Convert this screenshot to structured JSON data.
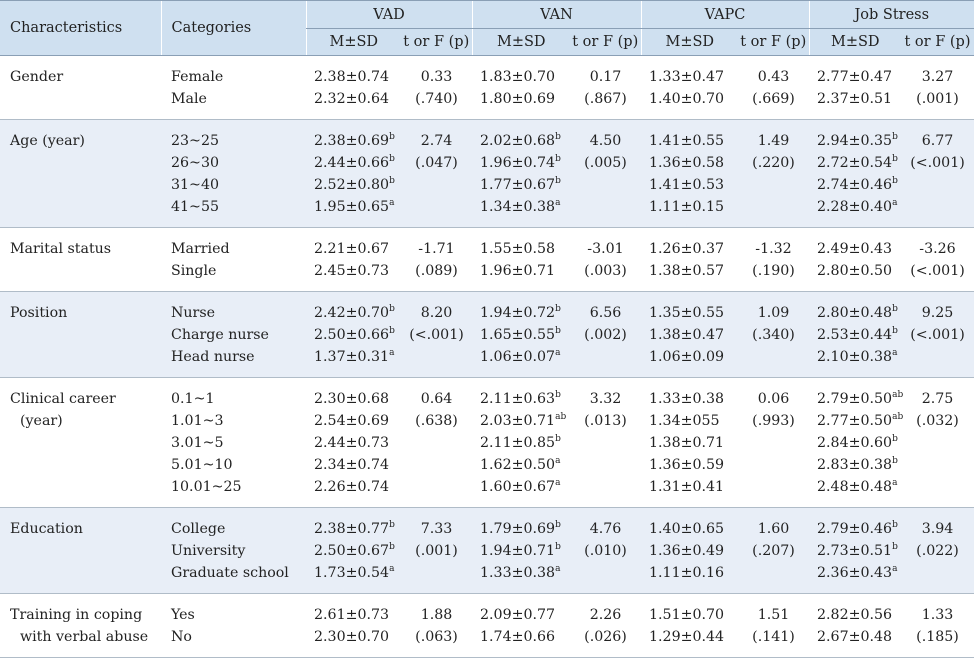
{
  "header": {
    "characteristics": "Characteristics",
    "categories": "Categories",
    "groups": [
      "VAD",
      "VAN",
      "VAPC",
      "Job Stress"
    ],
    "ms_label": "M±SD",
    "tf_label": "t or F (p)"
  },
  "rows": [
    {
      "characteristic": [
        "Gender"
      ],
      "categories": [
        "Female",
        "Male"
      ],
      "vad": {
        "ms": [
          [
            "2.38±0.74",
            ""
          ],
          [
            "2.32±0.64",
            ""
          ]
        ],
        "tf": [
          "0.33",
          "(.740)"
        ]
      },
      "van": {
        "ms": [
          [
            "1.83±0.70",
            ""
          ],
          [
            "1.80±0.69",
            ""
          ]
        ],
        "tf": [
          "0.17",
          "(.867)"
        ]
      },
      "vapc": {
        "ms": [
          [
            "1.33±0.47",
            ""
          ],
          [
            "1.40±0.70",
            ""
          ]
        ],
        "tf": [
          "0.43",
          "(.669)"
        ]
      },
      "js": {
        "ms": [
          [
            "2.77±0.47",
            ""
          ],
          [
            "2.37±0.51",
            ""
          ]
        ],
        "tf": [
          "3.27",
          "(.001)"
        ]
      }
    },
    {
      "characteristic": [
        "Age (year)"
      ],
      "categories": [
        "23~25",
        "26~30",
        "31~40",
        "41~55"
      ],
      "vad": {
        "ms": [
          [
            "2.38±0.69",
            "b"
          ],
          [
            "2.44±0.66",
            "b"
          ],
          [
            "2.52±0.80",
            "b"
          ],
          [
            "1.95±0.65",
            "a"
          ]
        ],
        "tf": [
          "2.74",
          "(.047)"
        ]
      },
      "van": {
        "ms": [
          [
            "2.02±0.68",
            "b"
          ],
          [
            "1.96±0.74",
            "b"
          ],
          [
            "1.77±0.67",
            "b"
          ],
          [
            "1.34±0.38",
            "a"
          ]
        ],
        "tf": [
          "4.50",
          "(.005)"
        ]
      },
      "vapc": {
        "ms": [
          [
            "1.41±0.55",
            ""
          ],
          [
            "1.36±0.58",
            ""
          ],
          [
            "1.41±0.53",
            ""
          ],
          [
            "1.11±0.15",
            ""
          ]
        ],
        "tf": [
          "1.49",
          "(.220)"
        ]
      },
      "js": {
        "ms": [
          [
            "2.94±0.35",
            "b"
          ],
          [
            "2.72±0.54",
            "b"
          ],
          [
            "2.74±0.46",
            "b"
          ],
          [
            "2.28±0.40",
            "a"
          ]
        ],
        "tf": [
          "6.77",
          "(<.001)"
        ]
      }
    },
    {
      "characteristic": [
        "Marital status"
      ],
      "categories": [
        "Married",
        "Single"
      ],
      "vad": {
        "ms": [
          [
            "2.21±0.67",
            ""
          ],
          [
            "2.45±0.73",
            ""
          ]
        ],
        "tf": [
          "-1.71",
          "(.089)"
        ]
      },
      "van": {
        "ms": [
          [
            "1.55±0.58",
            ""
          ],
          [
            "1.96±0.71",
            ""
          ]
        ],
        "tf": [
          "-3.01",
          "(.003)"
        ]
      },
      "vapc": {
        "ms": [
          [
            "1.26±0.37",
            ""
          ],
          [
            "1.38±0.57",
            ""
          ]
        ],
        "tf": [
          "-1.32",
          "(.190)"
        ]
      },
      "js": {
        "ms": [
          [
            "2.49±0.43",
            ""
          ],
          [
            "2.80±0.50",
            ""
          ]
        ],
        "tf": [
          "-3.26",
          "(<.001)"
        ]
      }
    },
    {
      "characteristic": [
        "Position"
      ],
      "categories": [
        "Nurse",
        "Charge nurse",
        "Head nurse"
      ],
      "vad": {
        "ms": [
          [
            "2.42±0.70",
            "b"
          ],
          [
            "2.50±0.66",
            "b"
          ],
          [
            "1.37±0.31",
            "a"
          ]
        ],
        "tf": [
          "8.20",
          "(<.001)"
        ]
      },
      "van": {
        "ms": [
          [
            "1.94±0.72",
            "b"
          ],
          [
            "1.65±0.55",
            "b"
          ],
          [
            "1.06±0.07",
            "a"
          ]
        ],
        "tf": [
          "6.56",
          "(.002)"
        ]
      },
      "vapc": {
        "ms": [
          [
            "1.35±0.55",
            ""
          ],
          [
            "1.38±0.47",
            ""
          ],
          [
            "1.06±0.09",
            ""
          ]
        ],
        "tf": [
          "1.09",
          "(.340)"
        ]
      },
      "js": {
        "ms": [
          [
            "2.80±0.48",
            "b"
          ],
          [
            "2.53±0.44",
            "b"
          ],
          [
            "2.10±0.38",
            "a"
          ]
        ],
        "tf": [
          "9.25",
          "(<.001)"
        ]
      }
    },
    {
      "characteristic": [
        "Clinical career",
        "(year)"
      ],
      "categories": [
        "0.1~1",
        "1.01~3",
        "3.01~5",
        "5.01~10",
        "10.01~25"
      ],
      "vad": {
        "ms": [
          [
            "2.30±0.68",
            ""
          ],
          [
            "2.54±0.69",
            ""
          ],
          [
            "2.44±0.73",
            ""
          ],
          [
            "2.34±0.74",
            ""
          ],
          [
            "2.26±0.74",
            ""
          ]
        ],
        "tf": [
          "0.64",
          "(.638)"
        ]
      },
      "van": {
        "ms": [
          [
            "2.11±0.63",
            "b"
          ],
          [
            "2.03±0.71",
            "ab"
          ],
          [
            "2.11±0.85",
            "b"
          ],
          [
            "1.62±0.50",
            "a"
          ],
          [
            "1.60±0.67",
            "a"
          ]
        ],
        "tf": [
          "3.32",
          "(.013)"
        ]
      },
      "vapc": {
        "ms": [
          [
            "1.33±0.38",
            ""
          ],
          [
            "1.34±055",
            ""
          ],
          [
            "1.38±0.71",
            ""
          ],
          [
            "1.36±0.59",
            ""
          ],
          [
            "1.31±0.41",
            ""
          ]
        ],
        "tf": [
          "0.06",
          "(.993)"
        ]
      },
      "js": {
        "ms": [
          [
            "2.79±0.50",
            "ab"
          ],
          [
            "2.77±0.50",
            "ab"
          ],
          [
            "2.84±0.60",
            "b"
          ],
          [
            "2.83±0.38",
            "b"
          ],
          [
            "2.48±0.48",
            "a"
          ]
        ],
        "tf": [
          "2.75",
          "(.032)"
        ]
      }
    },
    {
      "characteristic": [
        "Education"
      ],
      "categories": [
        "College",
        "University",
        "Graduate school"
      ],
      "vad": {
        "ms": [
          [
            "2.38±0.77",
            "b"
          ],
          [
            "2.50±0.67",
            "b"
          ],
          [
            "1.73±0.54",
            "a"
          ]
        ],
        "tf": [
          "7.33",
          "(.001)"
        ]
      },
      "van": {
        "ms": [
          [
            "1.79±0.69",
            "b"
          ],
          [
            "1.94±0.71",
            "b"
          ],
          [
            "1.33±0.38",
            "a"
          ]
        ],
        "tf": [
          "4.76",
          "(.010)"
        ]
      },
      "vapc": {
        "ms": [
          [
            "1.40±0.65",
            ""
          ],
          [
            "1.36±0.49",
            ""
          ],
          [
            "1.11±0.16",
            ""
          ]
        ],
        "tf": [
          "1.60",
          "(.207)"
        ]
      },
      "js": {
        "ms": [
          [
            "2.79±0.46",
            "b"
          ],
          [
            "2.73±0.51",
            "b"
          ],
          [
            "2.36±0.43",
            "a"
          ]
        ],
        "tf": [
          "3.94",
          "(.022)"
        ]
      }
    },
    {
      "characteristic": [
        "Training in coping",
        "with verbal abuse"
      ],
      "categories": [
        "Yes",
        "No"
      ],
      "vad": {
        "ms": [
          [
            "2.61±0.73",
            ""
          ],
          [
            "2.30±0.70",
            ""
          ]
        ],
        "tf": [
          "1.88",
          "(.063)"
        ]
      },
      "van": {
        "ms": [
          [
            "2.09±0.77",
            ""
          ],
          [
            "1.74±0.66",
            ""
          ]
        ],
        "tf": [
          "2.26",
          "(.026)"
        ]
      },
      "vapc": {
        "ms": [
          [
            "1.51±0.70",
            ""
          ],
          [
            "1.29±0.44",
            ""
          ]
        ],
        "tf": [
          "1.51",
          "(.141)"
        ]
      },
      "js": {
        "ms": [
          [
            "2.82±0.56",
            ""
          ],
          [
            "2.67±0.48",
            ""
          ]
        ],
        "tf": [
          "1.33",
          "(.185)"
        ]
      }
    }
  ]
}
